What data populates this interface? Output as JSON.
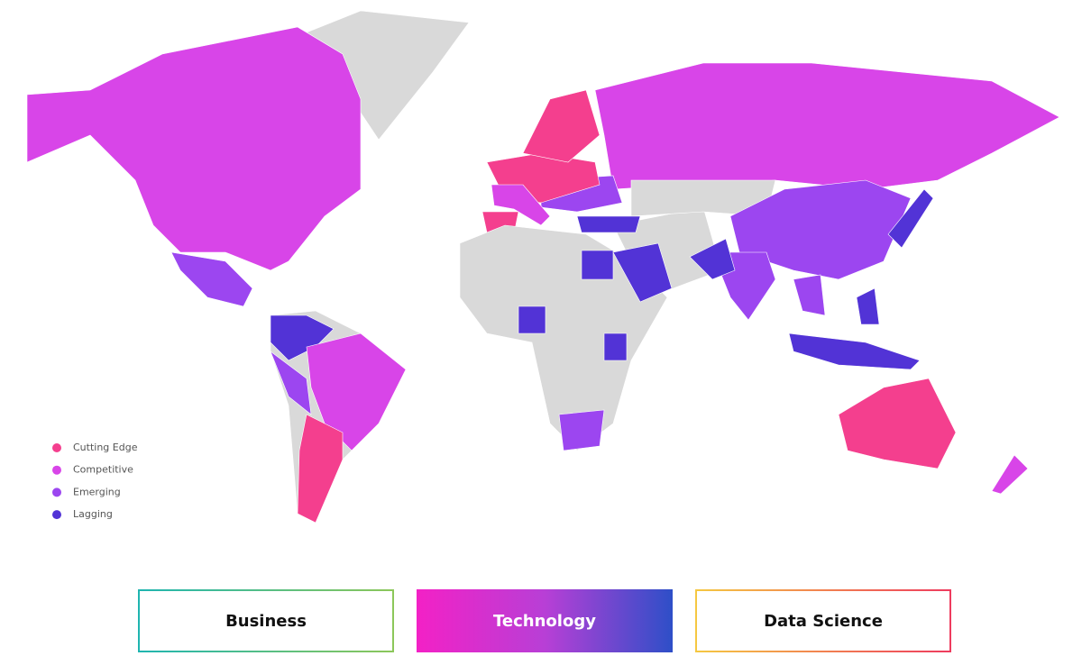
{
  "legend": {
    "items": [
      {
        "label": "Cutting Edge",
        "color": "#f43f8e"
      },
      {
        "label": "Competitive",
        "color": "#d845e8"
      },
      {
        "label": "Emerging",
        "color": "#9c46f0"
      },
      {
        "label": "Lagging",
        "color": "#5233d6"
      }
    ]
  },
  "tabs": [
    {
      "label": "Business",
      "selected": false
    },
    {
      "label": "Technology",
      "selected": true
    },
    {
      "label": "Data Science",
      "selected": false
    }
  ]
}
